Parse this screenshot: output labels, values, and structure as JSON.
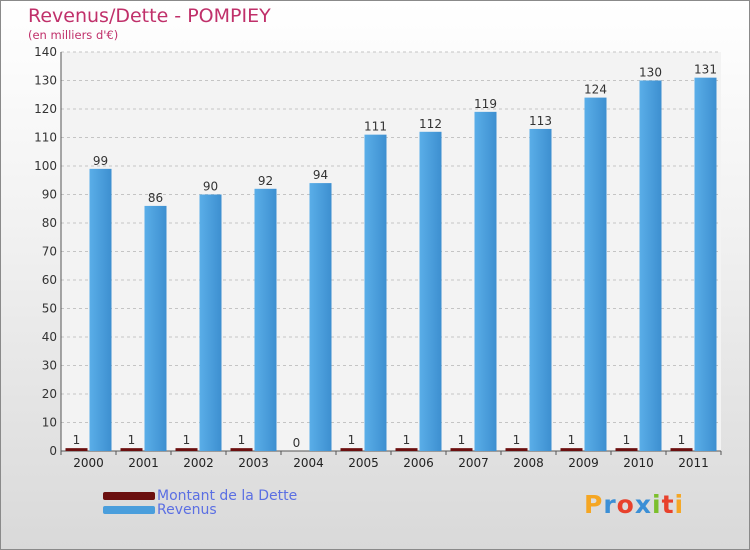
{
  "header": {
    "title": "Revenus/Dette - POMPIEY",
    "subtitle": "(en milliers d'€)"
  },
  "colors": {
    "title": "#c0306a",
    "dette": "#6b0f0f",
    "revenus": "#4a9edc",
    "legend_text": "#5b6fe3"
  },
  "legend": [
    {
      "label": "Montant de la Dette",
      "color": "#6b0f0f"
    },
    {
      "label": "Revenus",
      "color": "#4a9edc"
    }
  ],
  "logo": {
    "letters": [
      "P",
      "r",
      "o",
      "x",
      "i",
      "t",
      "i"
    ],
    "colors": [
      "#f5a623",
      "#3b8fd6",
      "#e8412c",
      "#3b8fd6",
      "#7cbf2c",
      "#e8412c",
      "#f5a623"
    ]
  },
  "chart_data": {
    "type": "bar",
    "title": "Revenus/Dette - POMPIEY",
    "ylabel": "(en milliers d'€)",
    "xlabel": "",
    "categories": [
      "2000",
      "2001",
      "2002",
      "2003",
      "2004",
      "2005",
      "2006",
      "2007",
      "2008",
      "2009",
      "2010",
      "2011"
    ],
    "series": [
      {
        "name": "Montant de la Dette",
        "values": [
          1,
          1,
          1,
          1,
          0,
          1,
          1,
          1,
          1,
          1,
          1,
          1
        ]
      },
      {
        "name": "Revenus",
        "values": [
          99,
          86,
          90,
          92,
          94,
          111,
          112,
          119,
          113,
          124,
          130,
          131
        ]
      }
    ],
    "ylim": [
      0,
      140
    ],
    "yticks": [
      0,
      10,
      20,
      30,
      40,
      50,
      60,
      70,
      80,
      90,
      100,
      110,
      120,
      130,
      140
    ],
    "grid": true,
    "legend_position": "bottom-left"
  }
}
